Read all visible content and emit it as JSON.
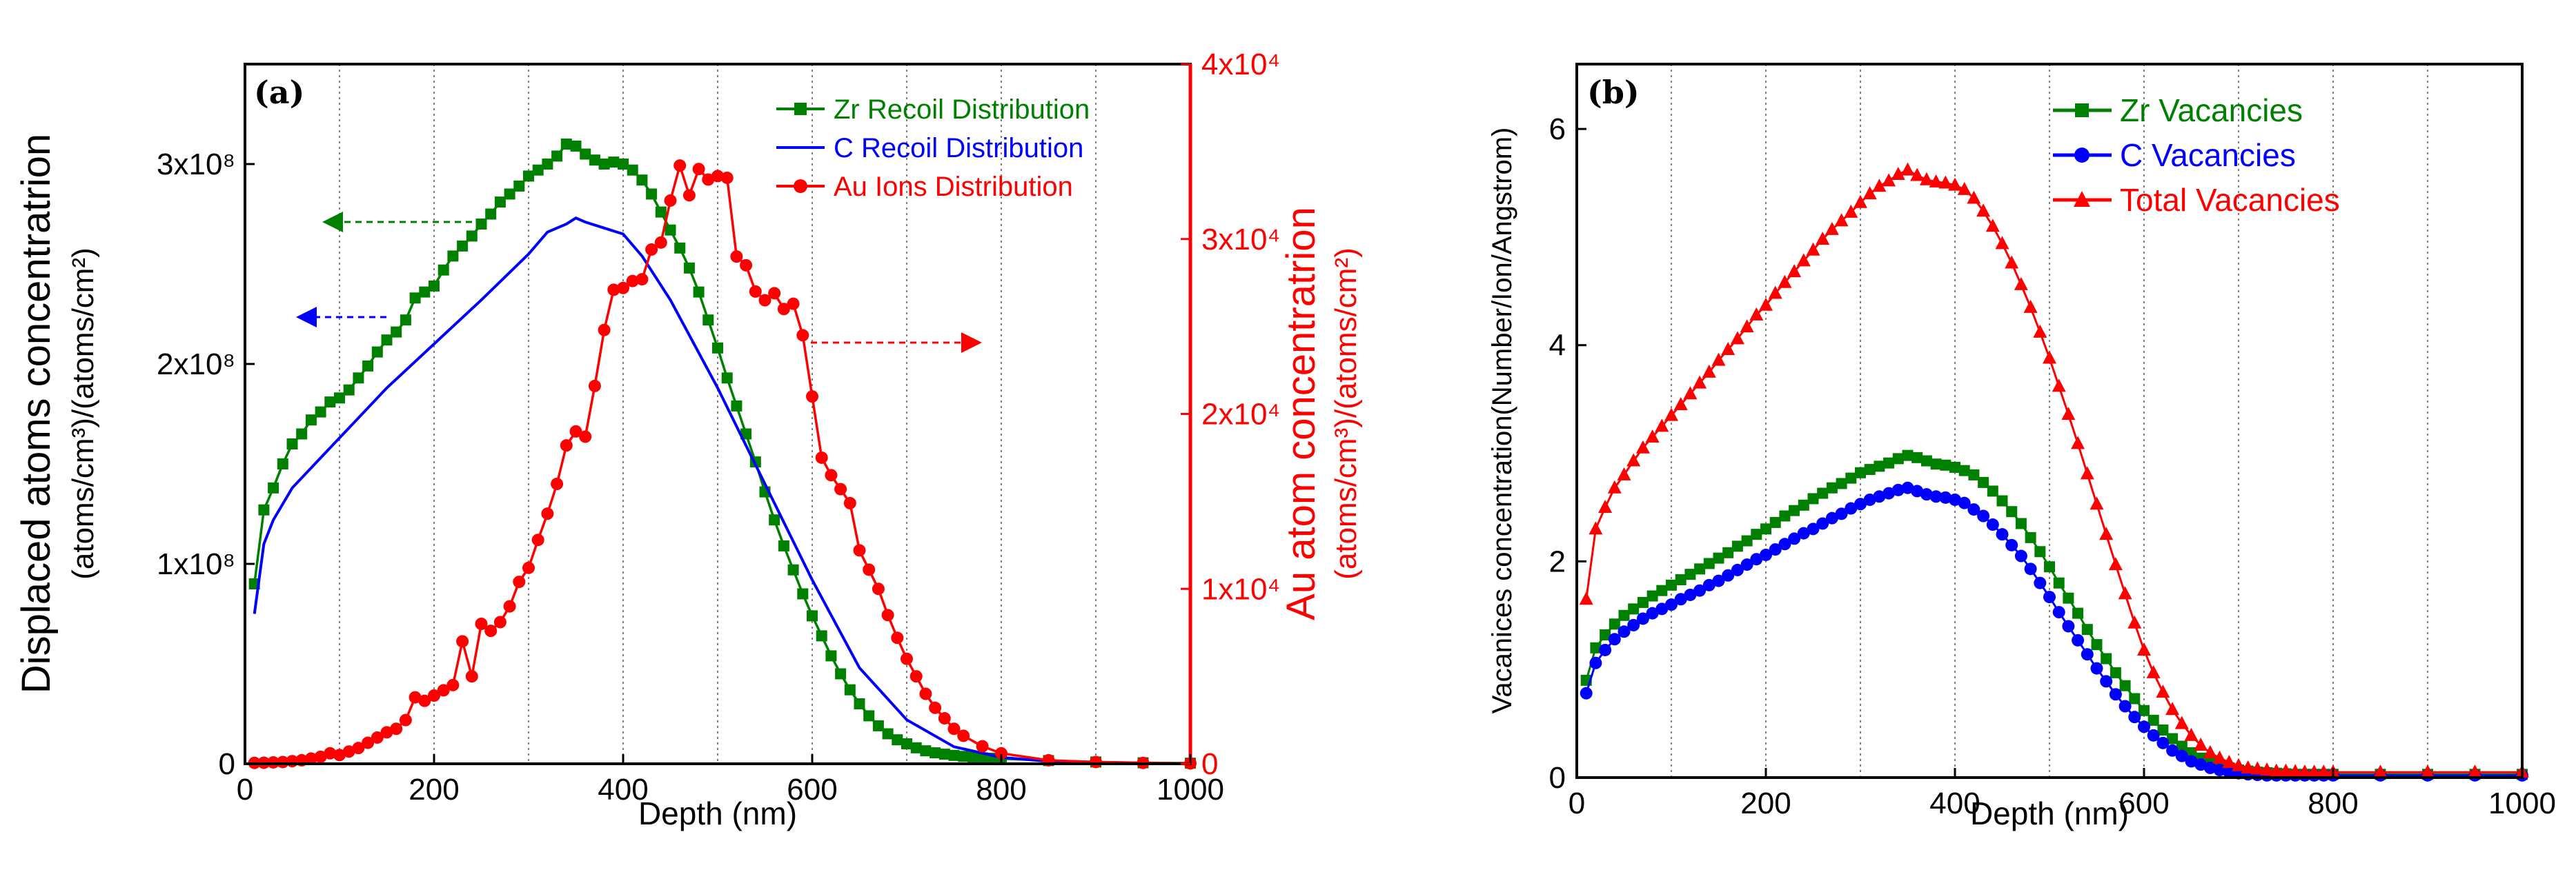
{
  "chart_data": [
    {
      "panel": "(a)",
      "type": "line",
      "xlabel": "Depth (nm)",
      "x_ticks": [
        "0",
        "200",
        "400",
        "600",
        "800",
        "1000"
      ],
      "xlim": [
        0,
        1000
      ],
      "ylabel_left_line1": "Displaced atoms concentratrion",
      "ylabel_left_line2": "(atoms/cm³)/(atoms/cm²)",
      "ylim_left": [
        0,
        350000000
      ],
      "y_ticks_left": [
        {
          "value": 0,
          "label": "0"
        },
        {
          "value": 100000000,
          "label": "1x10⁸"
        },
        {
          "value": 200000000,
          "label": "2x10⁸"
        },
        {
          "value": 300000000,
          "label": "3x10⁸"
        }
      ],
      "ylabel_right_line1": "Au atom concentratrion",
      "ylabel_right_line2": "(atoms/cm³)/(atoms/cm²)",
      "ylim_right": [
        0,
        40000
      ],
      "y_ticks_right": [
        {
          "value": 0,
          "label": "0"
        },
        {
          "value": 10000,
          "label": "1x10⁴"
        },
        {
          "value": 20000,
          "label": "2x10⁴"
        },
        {
          "value": 30000,
          "label": "3x10⁴"
        },
        {
          "value": 40000,
          "label": "4x10⁴"
        }
      ],
      "series": [
        {
          "name": "Zr Recoil Distribution",
          "axis": "left",
          "color": "#008000",
          "marker": "square",
          "x": [
            10,
            20,
            30,
            40,
            50,
            60,
            70,
            80,
            90,
            100,
            110,
            120,
            130,
            140,
            150,
            160,
            170,
            180,
            190,
            200,
            210,
            220,
            230,
            240,
            250,
            260,
            270,
            280,
            290,
            300,
            310,
            320,
            330,
            340,
            350,
            360,
            370,
            380,
            390,
            400,
            410,
            420,
            430,
            440,
            450,
            460,
            470,
            480,
            490,
            500,
            510,
            520,
            530,
            540,
            550,
            560,
            570,
            580,
            590,
            600,
            610,
            620,
            630,
            640,
            650,
            660,
            670,
            680,
            690,
            700,
            710,
            720,
            730,
            740,
            750,
            760,
            770,
            780,
            790,
            800,
            850,
            900,
            950,
            1000
          ],
          "y": [
            90000000,
            127000000,
            138000000,
            150000000,
            160000000,
            165000000,
            172000000,
            176000000,
            181000000,
            183000000,
            187000000,
            193000000,
            199000000,
            206000000,
            212000000,
            216000000,
            222000000,
            233000000,
            236000000,
            239000000,
            247000000,
            254000000,
            259000000,
            264000000,
            270000000,
            275000000,
            281000000,
            285000000,
            289000000,
            294000000,
            297000000,
            300000000,
            304000000,
            310000000,
            309000000,
            305000000,
            302000000,
            300000000,
            301000000,
            300000000,
            297000000,
            292000000,
            285000000,
            276000000,
            267000000,
            258000000,
            248000000,
            236000000,
            222000000,
            208000000,
            193000000,
            179000000,
            165000000,
            151000000,
            136000000,
            122000000,
            109000000,
            97000000,
            85000000,
            74000000,
            64000000,
            54000000,
            45000000,
            37000000,
            30000000,
            24000000,
            19000000,
            15000000,
            12000000,
            10000000,
            8000000,
            6500000,
            5500000,
            4800000,
            4200000,
            3700000,
            3300000,
            3000000,
            2800000,
            2600000,
            1600000,
            900000,
            500000,
            300000
          ]
        },
        {
          "name": "C Recoil Distribution",
          "axis": "left",
          "color": "#0000ff",
          "marker": "none",
          "x": [
            10,
            20,
            30,
            50,
            80,
            100,
            150,
            200,
            250,
            300,
            320,
            340,
            350,
            360,
            380,
            400,
            420,
            450,
            500,
            550,
            600,
            650,
            700,
            750,
            800,
            850,
            900,
            950,
            1000
          ],
          "y": [
            75000000,
            110000000,
            122000000,
            138000000,
            153000000,
            163000000,
            188000000,
            210000000,
            232000000,
            255000000,
            266000000,
            270000000,
            273000000,
            271000000,
            268000000,
            265000000,
            254000000,
            232000000,
            188000000,
            140000000,
            92000000,
            48000000,
            22000000,
            8500000,
            3200000,
            1200000,
            500000,
            200000,
            100000
          ]
        },
        {
          "name": "Au Ions Distribution",
          "axis": "right",
          "color": "#ff0000",
          "marker": "circle",
          "x": [
            10,
            20,
            30,
            40,
            50,
            60,
            70,
            80,
            90,
            100,
            110,
            120,
            130,
            140,
            150,
            160,
            170,
            180,
            190,
            200,
            210,
            220,
            230,
            240,
            250,
            260,
            270,
            280,
            290,
            300,
            310,
            320,
            330,
            340,
            350,
            360,
            370,
            380,
            390,
            400,
            410,
            420,
            430,
            440,
            450,
            460,
            470,
            480,
            490,
            500,
            510,
            520,
            530,
            540,
            550,
            560,
            570,
            580,
            590,
            600,
            610,
            620,
            630,
            640,
            650,
            660,
            670,
            680,
            690,
            700,
            710,
            720,
            730,
            740,
            750,
            760,
            780,
            800,
            850,
            900,
            950,
            1000
          ],
          "y": [
            50,
            60,
            80,
            100,
            150,
            200,
            300,
            400,
            600,
            500,
            700,
            900,
            1200,
            1500,
            1800,
            2000,
            2500,
            3800,
            3600,
            3900,
            4200,
            4500,
            7000,
            5000,
            8000,
            7600,
            8100,
            9000,
            10400,
            11200,
            12800,
            14300,
            16000,
            18200,
            19000,
            18700,
            21600,
            24800,
            27100,
            27200,
            27600,
            27700,
            29400,
            29800,
            32200,
            34200,
            32500,
            34000,
            33400,
            33600,
            33500,
            29000,
            28500,
            27000,
            26500,
            26900,
            26000,
            26300,
            24500,
            21000,
            17500,
            16500,
            15700,
            14900,
            12200,
            11100,
            10000,
            8500,
            7200,
            6000,
            5000,
            4000,
            3200,
            2600,
            2000,
            1600,
            1000,
            600,
            200,
            100,
            50,
            20
          ]
        }
      ],
      "legend_position": "top-right",
      "annotations": [
        "arrow-left (Zr)",
        "arrow-left (C)",
        "arrow-right (Au)"
      ]
    },
    {
      "panel": "(b)",
      "type": "line",
      "xlabel": "Depth (nm)",
      "x_ticks": [
        "0",
        "200",
        "400",
        "600",
        "800",
        "1000"
      ],
      "xlim": [
        0,
        1000
      ],
      "ylabel": "Vacanices concentration(Number/Ion/Angstrom)",
      "ylim": [
        0,
        6.6
      ],
      "y_ticks": [
        "0",
        "2",
        "4",
        "6"
      ],
      "series": [
        {
          "name": "Zr  Vacancies",
          "color": "#008000",
          "marker": "square",
          "x": [
            10,
            20,
            30,
            40,
            50,
            60,
            70,
            80,
            90,
            100,
            110,
            120,
            130,
            140,
            150,
            160,
            170,
            180,
            190,
            200,
            210,
            220,
            230,
            240,
            250,
            260,
            270,
            280,
            290,
            300,
            310,
            320,
            330,
            340,
            350,
            360,
            370,
            380,
            390,
            400,
            410,
            420,
            430,
            440,
            450,
            460,
            470,
            480,
            490,
            500,
            510,
            520,
            530,
            540,
            550,
            560,
            570,
            580,
            590,
            600,
            610,
            620,
            630,
            640,
            650,
            660,
            670,
            680,
            690,
            700,
            710,
            720,
            730,
            740,
            750,
            760,
            770,
            780,
            790,
            800,
            850,
            900,
            950,
            1000
          ],
          "y": [
            0.9,
            1.2,
            1.32,
            1.42,
            1.5,
            1.56,
            1.62,
            1.68,
            1.73,
            1.78,
            1.83,
            1.88,
            1.93,
            1.98,
            2.03,
            2.08,
            2.14,
            2.19,
            2.25,
            2.3,
            2.36,
            2.42,
            2.47,
            2.52,
            2.58,
            2.63,
            2.68,
            2.72,
            2.77,
            2.82,
            2.85,
            2.88,
            2.91,
            2.95,
            2.98,
            2.96,
            2.93,
            2.9,
            2.89,
            2.87,
            2.84,
            2.8,
            2.73,
            2.65,
            2.56,
            2.46,
            2.35,
            2.22,
            2.09,
            1.95,
            1.8,
            1.66,
            1.52,
            1.37,
            1.23,
            1.1,
            0.97,
            0.85,
            0.73,
            0.62,
            0.53,
            0.44,
            0.36,
            0.29,
            0.23,
            0.18,
            0.14,
            0.11,
            0.09,
            0.07,
            0.06,
            0.05,
            0.045,
            0.04,
            0.035,
            0.03,
            0.03,
            0.03,
            0.03,
            0.03,
            0.03,
            0.03,
            0.03,
            0.03
          ]
        },
        {
          "name": "C  Vacancies",
          "color": "#0000ff",
          "marker": "circle",
          "x": [
            10,
            20,
            30,
            40,
            50,
            60,
            70,
            80,
            90,
            100,
            110,
            120,
            130,
            140,
            150,
            160,
            170,
            180,
            190,
            200,
            210,
            220,
            230,
            240,
            250,
            260,
            270,
            280,
            290,
            300,
            310,
            320,
            330,
            340,
            350,
            360,
            370,
            380,
            390,
            400,
            410,
            420,
            430,
            440,
            450,
            460,
            470,
            480,
            490,
            500,
            510,
            520,
            530,
            540,
            550,
            560,
            570,
            580,
            590,
            600,
            610,
            620,
            630,
            640,
            650,
            660,
            670,
            680,
            690,
            700,
            710,
            720,
            730,
            740,
            750,
            760,
            770,
            780,
            790,
            800,
            850,
            900,
            950,
            1000
          ],
          "y": [
            0.78,
            1.06,
            1.18,
            1.28,
            1.35,
            1.41,
            1.47,
            1.52,
            1.56,
            1.6,
            1.65,
            1.69,
            1.73,
            1.78,
            1.82,
            1.87,
            1.92,
            1.97,
            2.02,
            2.06,
            2.11,
            2.16,
            2.21,
            2.26,
            2.3,
            2.35,
            2.4,
            2.44,
            2.49,
            2.53,
            2.57,
            2.6,
            2.63,
            2.66,
            2.68,
            2.65,
            2.62,
            2.6,
            2.59,
            2.57,
            2.54,
            2.48,
            2.42,
            2.34,
            2.25,
            2.15,
            2.05,
            1.93,
            1.8,
            1.67,
            1.53,
            1.4,
            1.27,
            1.14,
            1.01,
            0.89,
            0.77,
            0.66,
            0.56,
            0.47,
            0.39,
            0.32,
            0.25,
            0.2,
            0.15,
            0.12,
            0.09,
            0.07,
            0.05,
            0.04,
            0.03,
            0.025,
            0.02,
            0.02,
            0.02,
            0.02,
            0.02,
            0.02,
            0.02,
            0.02,
            0.02,
            0.02,
            0.02,
            0.02
          ]
        },
        {
          "name": "Total Vacancies",
          "color": "#ff0000",
          "marker": "triangle",
          "x": [
            10,
            20,
            30,
            40,
            50,
            60,
            70,
            80,
            90,
            100,
            110,
            120,
            130,
            140,
            150,
            160,
            170,
            180,
            190,
            200,
            210,
            220,
            230,
            240,
            250,
            260,
            270,
            280,
            290,
            300,
            310,
            320,
            330,
            340,
            350,
            360,
            370,
            380,
            390,
            400,
            410,
            420,
            430,
            440,
            450,
            460,
            470,
            480,
            490,
            500,
            510,
            520,
            530,
            540,
            550,
            560,
            570,
            580,
            590,
            600,
            610,
            620,
            630,
            640,
            650,
            660,
            670,
            680,
            690,
            700,
            710,
            720,
            730,
            740,
            750,
            760,
            770,
            780,
            790,
            800,
            850,
            900,
            950,
            1000
          ],
          "y": [
            1.65,
            2.3,
            2.5,
            2.68,
            2.8,
            2.93,
            3.05,
            3.15,
            3.25,
            3.35,
            3.45,
            3.55,
            3.65,
            3.75,
            3.86,
            3.96,
            4.06,
            4.17,
            4.28,
            4.37,
            4.48,
            4.58,
            4.68,
            4.78,
            4.88,
            4.98,
            5.07,
            5.15,
            5.23,
            5.32,
            5.4,
            5.47,
            5.52,
            5.58,
            5.62,
            5.57,
            5.53,
            5.51,
            5.5,
            5.48,
            5.44,
            5.36,
            5.24,
            5.1,
            4.94,
            4.76,
            4.56,
            4.35,
            4.12,
            3.88,
            3.62,
            3.36,
            3.09,
            2.81,
            2.53,
            2.25,
            1.97,
            1.7,
            1.43,
            1.18,
            0.97,
            0.79,
            0.63,
            0.5,
            0.39,
            0.3,
            0.23,
            0.18,
            0.14,
            0.11,
            0.09,
            0.08,
            0.07,
            0.06,
            0.06,
            0.055,
            0.05,
            0.05,
            0.05,
            0.05,
            0.05,
            0.05,
            0.05,
            0.05
          ]
        }
      ],
      "legend_position": "top-right"
    }
  ]
}
